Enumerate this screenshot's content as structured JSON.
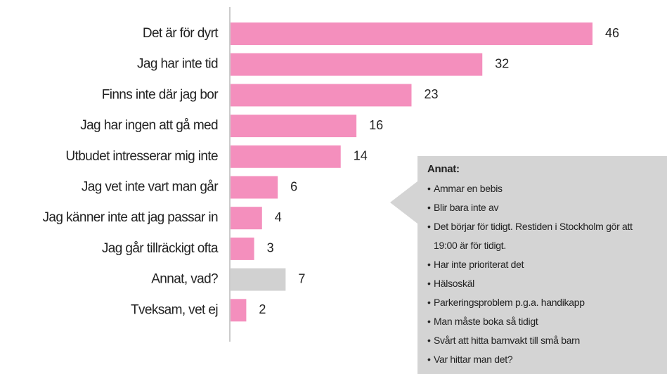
{
  "chart_data": {
    "type": "barh",
    "categories": [
      "Det är för dyrt",
      "Jag har inte tid",
      "Finns inte där jag bor",
      "Jag har ingen att gå med",
      "Utbudet intresserar mig inte",
      "Jag vet inte vart man går",
      "Jag känner inte att jag passar in",
      "Jag går tillräckigt ofta",
      "Annat, vad?",
      "Tveksam, vet ej"
    ],
    "values": [
      46,
      32,
      23,
      16,
      14,
      6,
      4,
      3,
      7,
      2
    ],
    "colors": [
      "#f48fbd",
      "#f48fbd",
      "#f48fbd",
      "#f48fbd",
      "#f48fbd",
      "#f48fbd",
      "#f48fbd",
      "#f48fbd",
      "#d1d1d1",
      "#f48fbd"
    ],
    "xlim": [
      0,
      46
    ],
    "annotation": {
      "title": "Annat:",
      "items": [
        "Ammar en bebis",
        "Blir bara inte av",
        "Det börjar för tidigt. Restiden i Stockholm gör att 19:00 är för tidigt.",
        "Har inte prioriterat det",
        "Hälsoskäl",
        "Parkeringsproblem p.g.a. handikapp",
        "Man måste boka så tidigt",
        "Svårt att hitta barnvakt till små barn",
        "Var hittar man det?"
      ]
    }
  }
}
